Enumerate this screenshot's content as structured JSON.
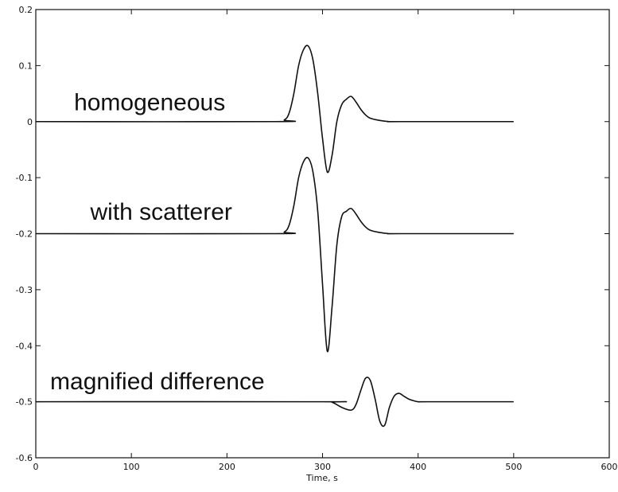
{
  "chart_data": {
    "type": "line",
    "title": "",
    "xlabel": "Time, s",
    "ylabel": "",
    "xlim": [
      0,
      600
    ],
    "ylim": [
      -0.6,
      0.2
    ],
    "grid": false,
    "x_ticks": [
      "0",
      "100",
      "200",
      "300",
      "400",
      "500",
      "600"
    ],
    "y_ticks": [
      "0.2",
      "0.1",
      "0",
      "-0.1",
      "-0.2",
      "-0.3",
      "-0.4",
      "-0.5",
      "-0.6"
    ],
    "annotations": [
      {
        "text": "homogeneous",
        "x": 40,
        "y": 0.02
      },
      {
        "text": "with scatterer",
        "x": 57,
        "y": -0.175
      },
      {
        "text": "magnified difference",
        "x": 15,
        "y": -0.478
      }
    ],
    "series": [
      {
        "x": [
          0,
          250,
          260,
          265,
          270,
          275,
          280,
          285,
          290,
          295,
          300,
          305,
          310,
          315,
          320,
          325,
          330,
          335,
          340,
          345,
          350,
          360,
          370,
          380,
          500
        ],
        "y": [
          0,
          0,
          0.003,
          0.015,
          0.05,
          0.1,
          0.128,
          0.135,
          0.11,
          0.05,
          -0.03,
          -0.09,
          -0.06,
          0.0,
          0.03,
          0.04,
          0.045,
          0.035,
          0.022,
          0.012,
          0.006,
          0.002,
          0.0,
          0.0,
          0
        ]
      },
      {
        "x": [
          0,
          250,
          260,
          265,
          270,
          275,
          280,
          285,
          290,
          295,
          300,
          305,
          310,
          315,
          320,
          325,
          330,
          335,
          340,
          345,
          350,
          360,
          370,
          380,
          500
        ],
        "y": [
          -0.2,
          -0.2,
          -0.197,
          -0.185,
          -0.15,
          -0.1,
          -0.072,
          -0.065,
          -0.09,
          -0.16,
          -0.29,
          -0.41,
          -0.33,
          -0.22,
          -0.17,
          -0.16,
          -0.155,
          -0.165,
          -0.178,
          -0.188,
          -0.194,
          -0.198,
          -0.2,
          -0.2,
          -0.2
        ]
      },
      {
        "x": [
          0,
          300,
          310,
          320,
          330,
          335,
          340,
          345,
          350,
          355,
          360,
          365,
          370,
          375,
          380,
          385,
          390,
          395,
          400,
          410,
          500
        ],
        "y": [
          -0.5,
          -0.5,
          -0.501,
          -0.51,
          -0.515,
          -0.505,
          -0.48,
          -0.458,
          -0.462,
          -0.495,
          -0.535,
          -0.542,
          -0.51,
          -0.49,
          -0.485,
          -0.49,
          -0.495,
          -0.498,
          -0.5,
          -0.5,
          -0.5
        ]
      }
    ]
  }
}
